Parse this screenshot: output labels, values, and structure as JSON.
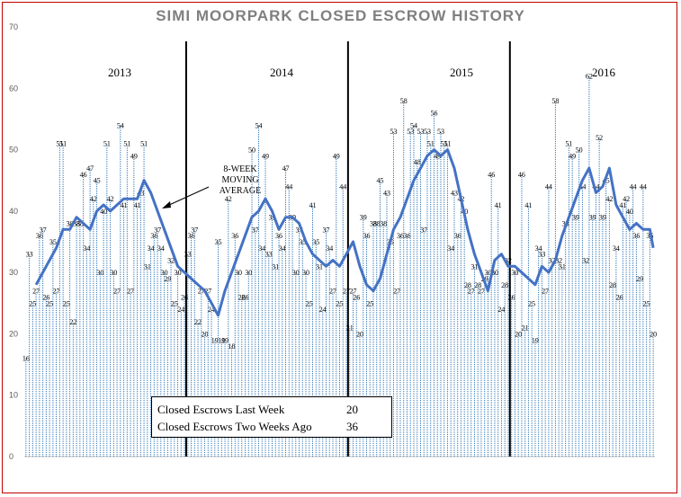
{
  "chart_data": {
    "type": "bar",
    "title": "SIMI MOORPARK CLOSED ESCROW HISTORY",
    "ylim": [
      0,
      70
    ],
    "yticks": [
      0,
      10,
      20,
      30,
      40,
      50,
      60,
      70
    ],
    "grid": false,
    "year_labels": [
      "2013",
      "2014",
      "2015",
      "2016"
    ],
    "year_boundaries_week": [
      48,
      96,
      144
    ],
    "annotation": "8-WEEK MOVING AVERAGE",
    "annotation_lines": [
      "8-WEEK",
      "MOVING",
      "AVERAGE"
    ],
    "labeled_points": [
      {
        "week": 0,
        "value": 16
      },
      {
        "week": 1,
        "value": 33
      },
      {
        "week": 2,
        "value": 25
      },
      {
        "week": 3,
        "value": 27
      },
      {
        "week": 4,
        "value": 36
      },
      {
        "week": 5,
        "value": 37
      },
      {
        "week": 6,
        "value": 26
      },
      {
        "week": 7,
        "value": 25
      },
      {
        "week": 8,
        "value": 35
      },
      {
        "week": 9,
        "value": 27
      },
      {
        "week": 10,
        "value": 51
      },
      {
        "week": 11,
        "value": 51
      },
      {
        "week": 12,
        "value": 25
      },
      {
        "week": 13,
        "value": 38
      },
      {
        "week": 14,
        "value": 22
      },
      {
        "week": 15,
        "value": 38
      },
      {
        "week": 16,
        "value": 38
      },
      {
        "week": 17,
        "value": 46
      },
      {
        "week": 18,
        "value": 34
      },
      {
        "week": 19,
        "value": 47
      },
      {
        "week": 20,
        "value": 42
      },
      {
        "week": 21,
        "value": 45
      },
      {
        "week": 22,
        "value": 30
      },
      {
        "week": 23,
        "value": 40
      },
      {
        "week": 24,
        "value": 51
      },
      {
        "week": 25,
        "value": 42
      },
      {
        "week": 26,
        "value": 30
      },
      {
        "week": 27,
        "value": 27
      },
      {
        "week": 28,
        "value": 54
      },
      {
        "week": 29,
        "value": 41
      },
      {
        "week": 30,
        "value": 51
      },
      {
        "week": 31,
        "value": 27
      },
      {
        "week": 32,
        "value": 49
      },
      {
        "week": 33,
        "value": 41
      },
      {
        "week": 34,
        "value": 43
      },
      {
        "week": 35,
        "value": 51
      },
      {
        "week": 36,
        "value": 31
      },
      {
        "week": 37,
        "value": 34
      },
      {
        "week": 38,
        "value": 36
      },
      {
        "week": 39,
        "value": 37
      },
      {
        "week": 40,
        "value": 34
      },
      {
        "week": 41,
        "value": 30
      },
      {
        "week": 42,
        "value": 29
      },
      {
        "week": 43,
        "value": 32
      },
      {
        "week": 44,
        "value": 25
      },
      {
        "week": 45,
        "value": 30
      },
      {
        "week": 46,
        "value": 24
      },
      {
        "week": 47,
        "value": 26
      },
      {
        "week": 48,
        "value": 33
      },
      {
        "week": 49,
        "value": 36
      },
      {
        "week": 50,
        "value": 37
      },
      {
        "week": 51,
        "value": 22
      },
      {
        "week": 52,
        "value": 27
      },
      {
        "week": 53,
        "value": 20
      },
      {
        "week": 54,
        "value": 27
      },
      {
        "week": 55,
        "value": 24
      },
      {
        "week": 56,
        "value": 19
      },
      {
        "week": 57,
        "value": 35
      },
      {
        "week": 58,
        "value": 19
      },
      {
        "week": 59,
        "value": 19
      },
      {
        "week": 60,
        "value": 42
      },
      {
        "week": 61,
        "value": 18
      },
      {
        "week": 62,
        "value": 36
      },
      {
        "week": 63,
        "value": 30
      },
      {
        "week": 64,
        "value": 26
      },
      {
        "week": 65,
        "value": 26
      },
      {
        "week": 66,
        "value": 30
      },
      {
        "week": 67,
        "value": 50
      },
      {
        "week": 68,
        "value": 37
      },
      {
        "week": 69,
        "value": 54
      },
      {
        "week": 70,
        "value": 34
      },
      {
        "week": 71,
        "value": 49
      },
      {
        "week": 72,
        "value": 33
      },
      {
        "week": 73,
        "value": 39
      },
      {
        "week": 74,
        "value": 31
      },
      {
        "week": 75,
        "value": 36
      },
      {
        "week": 76,
        "value": 34
      },
      {
        "week": 77,
        "value": 47
      },
      {
        "week": 78,
        "value": 44
      },
      {
        "week": 79,
        "value": 39
      },
      {
        "week": 80,
        "value": 30
      },
      {
        "week": 81,
        "value": 37
      },
      {
        "week": 82,
        "value": 35
      },
      {
        "week": 83,
        "value": 30
      },
      {
        "week": 84,
        "value": 25
      },
      {
        "week": 85,
        "value": 41
      },
      {
        "week": 86,
        "value": 35
      },
      {
        "week": 87,
        "value": 31
      },
      {
        "week": 88,
        "value": 24
      },
      {
        "week": 89,
        "value": 37
      },
      {
        "week": 90,
        "value": 34
      },
      {
        "week": 91,
        "value": 27
      },
      {
        "week": 92,
        "value": 49
      },
      {
        "week": 93,
        "value": 25
      },
      {
        "week": 94,
        "value": 44
      },
      {
        "week": 95,
        "value": 27
      },
      {
        "week": 96,
        "value": 21
      },
      {
        "week": 97,
        "value": 27
      },
      {
        "week": 98,
        "value": 26
      },
      {
        "week": 99,
        "value": 20
      },
      {
        "week": 100,
        "value": 39
      },
      {
        "week": 101,
        "value": 36
      },
      {
        "week": 102,
        "value": 25
      },
      {
        "week": 103,
        "value": 38
      },
      {
        "week": 104,
        "value": 38
      },
      {
        "week": 105,
        "value": 45
      },
      {
        "week": 106,
        "value": 38
      },
      {
        "week": 107,
        "value": 43
      },
      {
        "week": 108,
        "value": 35
      },
      {
        "week": 109,
        "value": 53
      },
      {
        "week": 110,
        "value": 27
      },
      {
        "week": 111,
        "value": 36
      },
      {
        "week": 112,
        "value": 58
      },
      {
        "week": 113,
        "value": 36
      },
      {
        "week": 114,
        "value": 53
      },
      {
        "week": 115,
        "value": 54
      },
      {
        "week": 116,
        "value": 48
      },
      {
        "week": 117,
        "value": 53
      },
      {
        "week": 118,
        "value": 37
      },
      {
        "week": 119,
        "value": 53
      },
      {
        "week": 120,
        "value": 51
      },
      {
        "week": 121,
        "value": 56
      },
      {
        "week": 122,
        "value": 49
      },
      {
        "week": 123,
        "value": 53
      },
      {
        "week": 124,
        "value": 51
      },
      {
        "week": 125,
        "value": 51
      },
      {
        "week": 126,
        "value": 34
      },
      {
        "week": 127,
        "value": 43
      },
      {
        "week": 128,
        "value": 36
      },
      {
        "week": 129,
        "value": 42
      },
      {
        "week": 130,
        "value": 40
      },
      {
        "week": 131,
        "value": 28
      },
      {
        "week": 132,
        "value": 27
      },
      {
        "week": 133,
        "value": 31
      },
      {
        "week": 134,
        "value": 28
      },
      {
        "week": 135,
        "value": 27
      },
      {
        "week": 136,
        "value": 29
      },
      {
        "week": 137,
        "value": 30
      },
      {
        "week": 138,
        "value": 46
      },
      {
        "week": 139,
        "value": 30
      },
      {
        "week": 140,
        "value": 41
      },
      {
        "week": 141,
        "value": 24
      },
      {
        "week": 142,
        "value": 28
      },
      {
        "week": 143,
        "value": 32
      },
      {
        "week": 144,
        "value": 26
      },
      {
        "week": 145,
        "value": 30
      },
      {
        "week": 146,
        "value": 20
      },
      {
        "week": 147,
        "value": 46
      },
      {
        "week": 148,
        "value": 21
      },
      {
        "week": 149,
        "value": 41
      },
      {
        "week": 150,
        "value": 25
      },
      {
        "week": 151,
        "value": 19
      },
      {
        "week": 152,
        "value": 34
      },
      {
        "week": 153,
        "value": 33
      },
      {
        "week": 154,
        "value": 27
      },
      {
        "week": 155,
        "value": 44
      },
      {
        "week": 156,
        "value": 32
      },
      {
        "week": 157,
        "value": 58
      },
      {
        "week": 158,
        "value": 32
      },
      {
        "week": 159,
        "value": 31
      },
      {
        "week": 160,
        "value": 38
      },
      {
        "week": 161,
        "value": 51
      },
      {
        "week": 162,
        "value": 49
      },
      {
        "week": 163,
        "value": 39
      },
      {
        "week": 164,
        "value": 50
      },
      {
        "week": 165,
        "value": 44
      },
      {
        "week": 166,
        "value": 32
      },
      {
        "week": 167,
        "value": 62
      },
      {
        "week": 168,
        "value": 39
      },
      {
        "week": 169,
        "value": 44
      },
      {
        "week": 170,
        "value": 52
      },
      {
        "week": 171,
        "value": 39
      },
      {
        "week": 172,
        "value": 45
      },
      {
        "week": 173,
        "value": 42
      },
      {
        "week": 174,
        "value": 28
      },
      {
        "week": 175,
        "value": 34
      },
      {
        "week": 176,
        "value": 26
      },
      {
        "week": 177,
        "value": 41
      },
      {
        "week": 178,
        "value": 42
      },
      {
        "week": 179,
        "value": 40
      },
      {
        "week": 180,
        "value": 44
      },
      {
        "week": 181,
        "value": 36
      },
      {
        "week": 182,
        "value": 29
      },
      {
        "week": 183,
        "value": 44
      },
      {
        "week": 184,
        "value": 25
      },
      {
        "week": 185,
        "value": 36
      },
      {
        "week": 186,
        "value": 20
      }
    ],
    "series": [
      {
        "name": "8-WEEK MOVING AVERAGE",
        "type": "line",
        "values": [
          {
            "week": 3,
            "value": 28
          },
          {
            "week": 5,
            "value": 30
          },
          {
            "week": 7,
            "value": 32
          },
          {
            "week": 9,
            "value": 34
          },
          {
            "week": 11,
            "value": 37
          },
          {
            "week": 13,
            "value": 37
          },
          {
            "week": 15,
            "value": 39
          },
          {
            "week": 17,
            "value": 38
          },
          {
            "week": 19,
            "value": 37
          },
          {
            "week": 21,
            "value": 40
          },
          {
            "week": 23,
            "value": 41
          },
          {
            "week": 25,
            "value": 40
          },
          {
            "week": 27,
            "value": 41
          },
          {
            "week": 29,
            "value": 42
          },
          {
            "week": 31,
            "value": 42
          },
          {
            "week": 33,
            "value": 42
          },
          {
            "week": 35,
            "value": 45
          },
          {
            "week": 37,
            "value": 43
          },
          {
            "week": 39,
            "value": 40
          },
          {
            "week": 41,
            "value": 37
          },
          {
            "week": 43,
            "value": 34
          },
          {
            "week": 45,
            "value": 31
          },
          {
            "week": 47,
            "value": 30
          },
          {
            "week": 49,
            "value": 29
          },
          {
            "week": 51,
            "value": 28
          },
          {
            "week": 53,
            "value": 27
          },
          {
            "week": 55,
            "value": 25
          },
          {
            "week": 57,
            "value": 23
          },
          {
            "week": 59,
            "value": 27
          },
          {
            "week": 61,
            "value": 30
          },
          {
            "week": 63,
            "value": 33
          },
          {
            "week": 65,
            "value": 36
          },
          {
            "week": 67,
            "value": 39
          },
          {
            "week": 69,
            "value": 40
          },
          {
            "week": 71,
            "value": 42
          },
          {
            "week": 73,
            "value": 40
          },
          {
            "week": 75,
            "value": 37
          },
          {
            "week": 77,
            "value": 39
          },
          {
            "week": 79,
            "value": 39
          },
          {
            "week": 81,
            "value": 38
          },
          {
            "week": 83,
            "value": 35
          },
          {
            "week": 85,
            "value": 33
          },
          {
            "week": 87,
            "value": 32
          },
          {
            "week": 89,
            "value": 31
          },
          {
            "week": 91,
            "value": 32
          },
          {
            "week": 93,
            "value": 31
          },
          {
            "week": 95,
            "value": 33
          },
          {
            "week": 97,
            "value": 35
          },
          {
            "week": 99,
            "value": 31
          },
          {
            "week": 101,
            "value": 28
          },
          {
            "week": 103,
            "value": 27
          },
          {
            "week": 105,
            "value": 29
          },
          {
            "week": 107,
            "value": 33
          },
          {
            "week": 109,
            "value": 37
          },
          {
            "week": 111,
            "value": 39
          },
          {
            "week": 113,
            "value": 42
          },
          {
            "week": 115,
            "value": 45
          },
          {
            "week": 117,
            "value": 47
          },
          {
            "week": 119,
            "value": 49
          },
          {
            "week": 121,
            "value": 50
          },
          {
            "week": 123,
            "value": 49
          },
          {
            "week": 125,
            "value": 50
          },
          {
            "week": 127,
            "value": 47
          },
          {
            "week": 129,
            "value": 42
          },
          {
            "week": 131,
            "value": 37
          },
          {
            "week": 133,
            "value": 33
          },
          {
            "week": 135,
            "value": 30
          },
          {
            "week": 137,
            "value": 27
          },
          {
            "week": 139,
            "value": 32
          },
          {
            "week": 141,
            "value": 33
          },
          {
            "week": 143,
            "value": 31
          },
          {
            "week": 145,
            "value": 31
          },
          {
            "week": 147,
            "value": 30
          },
          {
            "week": 149,
            "value": 29
          },
          {
            "week": 151,
            "value": 28
          },
          {
            "week": 153,
            "value": 31
          },
          {
            "week": 155,
            "value": 30
          },
          {
            "week": 157,
            "value": 32
          },
          {
            "week": 159,
            "value": 36
          },
          {
            "week": 161,
            "value": 39
          },
          {
            "week": 163,
            "value": 42
          },
          {
            "week": 165,
            "value": 45
          },
          {
            "week": 167,
            "value": 47
          },
          {
            "week": 169,
            "value": 43
          },
          {
            "week": 171,
            "value": 44
          },
          {
            "week": 173,
            "value": 47
          },
          {
            "week": 175,
            "value": 41
          },
          {
            "week": 177,
            "value": 39
          },
          {
            "week": 179,
            "value": 37
          },
          {
            "week": 181,
            "value": 38
          },
          {
            "week": 183,
            "value": 37
          },
          {
            "week": 185,
            "value": 37
          },
          {
            "week": 186,
            "value": 34
          }
        ]
      }
    ]
  },
  "infobox": {
    "rows": [
      {
        "label": "Closed Escrows Last Week",
        "value": "20"
      },
      {
        "label": "Closed Escrows Two Weeks Ago",
        "value": "36"
      }
    ]
  },
  "colors": {
    "bar": "#2e75b6",
    "line": "#4472c4",
    "divider": "#000000",
    "frame": "#c00000",
    "title": "#7f7f7f"
  }
}
